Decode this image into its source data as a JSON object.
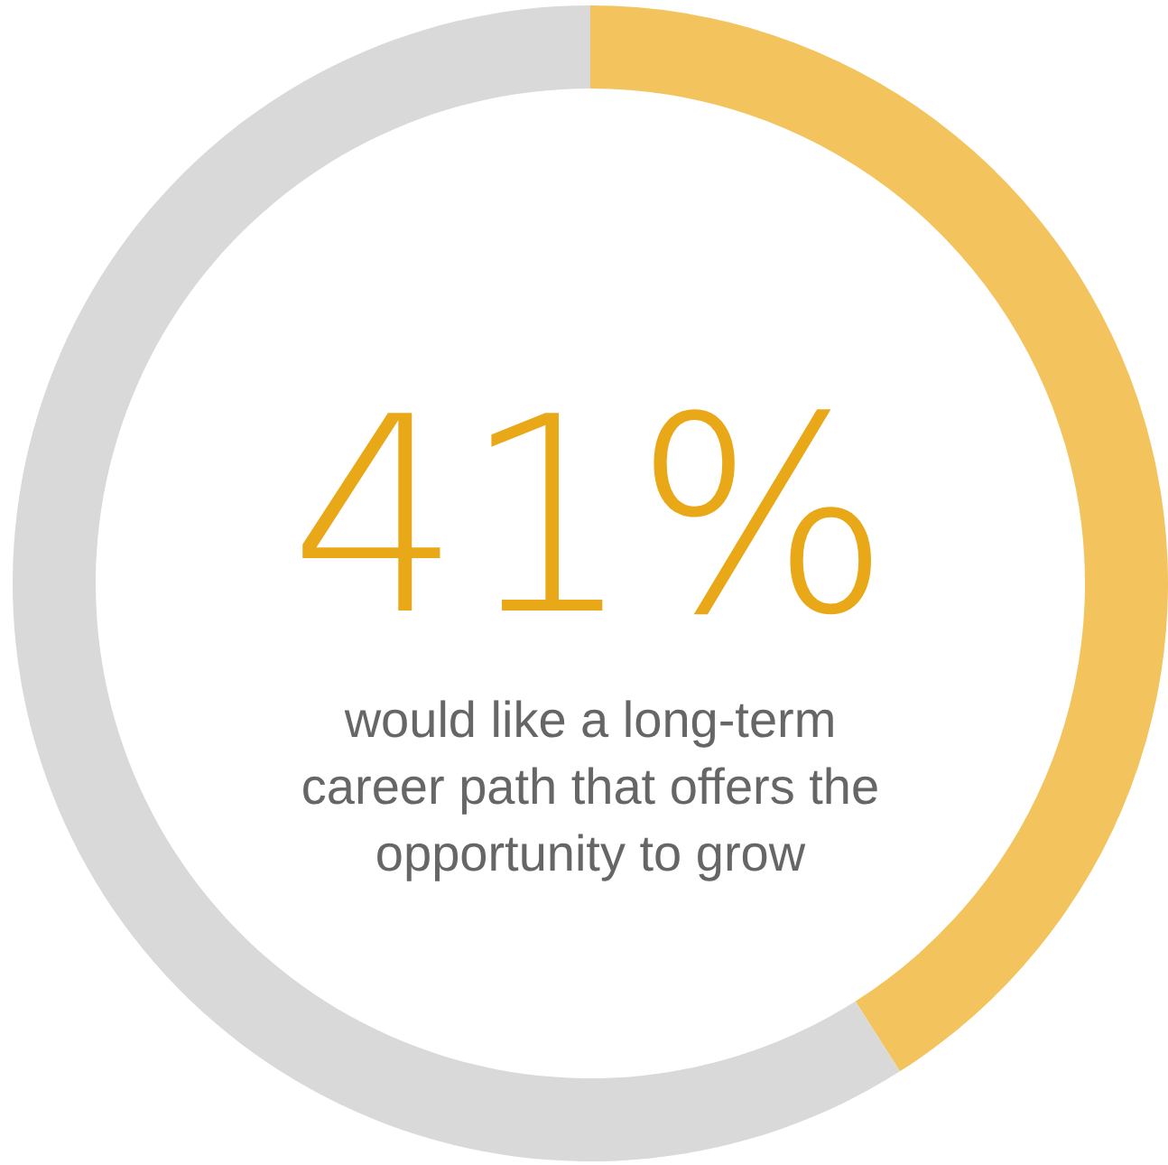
{
  "chart_data": {
    "type": "donut",
    "categories": [
      null,
      null
    ],
    "values": [
      41,
      59
    ],
    "colors": [
      "#f3c45e",
      "#d9d9d9"
    ],
    "value_labels": [
      "41%",
      null
    ],
    "annotations": [
      "would like a long-term career path that offers the opportunity to grow"
    ]
  }
}
